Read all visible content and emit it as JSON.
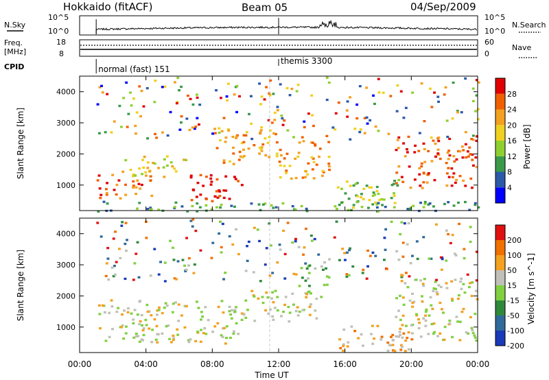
{
  "header": {
    "station": "Hokkaido (fitACF)",
    "beam": "Beam 05",
    "date": "04/Sep/2009"
  },
  "top_panel": {
    "left_label": "N.Sky",
    "right_label": "N.Search",
    "left_ticks": [
      "10^5",
      "10^0"
    ],
    "right_ticks": [
      "10^5",
      "10^0"
    ]
  },
  "freq_panel": {
    "left_label_1": "Freq.",
    "left_label_2": "[MHz]",
    "right_label": "Nave",
    "left_ticks": [
      "18",
      "8"
    ],
    "right_ticks": [
      "60",
      "0"
    ]
  },
  "cpid": {
    "label": "CPID",
    "modes": [
      {
        "name": "normal (fast) 151",
        "start_hour": 1.0
      },
      {
        "name": "themis 3300",
        "start_hour": 12.0
      }
    ]
  },
  "x_axis": {
    "title": "Time UT",
    "ticks": [
      "00:00",
      "04:00",
      "08:00",
      "12:00",
      "16:00",
      "20:00",
      "00:00"
    ],
    "range_hours": [
      0,
      24
    ]
  },
  "chart_data": [
    {
      "type": "heatmap",
      "title": "",
      "ylabel": "Slant Range [km]",
      "yticks": [
        "1000",
        "2000",
        "3000",
        "4000"
      ],
      "ylim": [
        180,
        4500
      ],
      "colorbar_label": "Power [dB]",
      "colorbar_ticks": [
        "4",
        "8",
        "12",
        "16",
        "20",
        "24",
        "28"
      ],
      "colors": [
        "#0000ff",
        "#2b5aa8",
        "#3a9a4a",
        "#8fd030",
        "#f0d020",
        "#f4a020",
        "#f06000",
        "#e00000"
      ],
      "regions": [
        {
          "t0": 1.0,
          "t1": 4.5,
          "r0": 600,
          "r1": 1400,
          "level": 6
        },
        {
          "t0": 2.5,
          "t1": 6.5,
          "r0": 1300,
          "r1": 2000,
          "level": 4
        },
        {
          "t0": 6.5,
          "t1": 10.0,
          "r0": 500,
          "r1": 1400,
          "level": 7
        },
        {
          "t0": 8.0,
          "t1": 12.0,
          "r0": 1700,
          "r1": 2900,
          "level": 5
        },
        {
          "t0": 12.0,
          "t1": 15.0,
          "r0": 1200,
          "r1": 2500,
          "level": 5
        },
        {
          "t0": 15.5,
          "t1": 20.0,
          "r0": 300,
          "r1": 1200,
          "level": 3
        },
        {
          "t0": 19.0,
          "t1": 24.0,
          "r0": 900,
          "r1": 2600,
          "level": 6
        },
        {
          "t0": 1.0,
          "t1": 24.0,
          "r0": 180,
          "r1": 500,
          "level": 2
        }
      ]
    },
    {
      "type": "heatmap",
      "title": "",
      "ylabel": "Slant Range [km]",
      "yticks": [
        "1000",
        "2000",
        "3000",
        "4000"
      ],
      "ylim": [
        180,
        4500
      ],
      "colorbar_label": "Velocity [m s^-1]",
      "colorbar_ticks": [
        "200",
        "100",
        "50",
        "15",
        "-15",
        "-50",
        "-100",
        "-200"
      ],
      "colors": [
        "#1a3ab8",
        "#2f6a9a",
        "#2e8a3a",
        "#80d040",
        "#c0c0b8",
        "#f4a020",
        "#f07000",
        "#e01010"
      ],
      "regions": [
        {
          "t0": 1.0,
          "t1": 10.0,
          "r0": 500,
          "r1": 1900,
          "level": 4
        },
        {
          "t0": 10.0,
          "t1": 14.5,
          "r0": 1200,
          "r1": 2200,
          "level": 4
        },
        {
          "t0": 15.5,
          "t1": 20.0,
          "r0": 250,
          "r1": 1100,
          "level": 5
        },
        {
          "t0": 19.0,
          "t1": 24.0,
          "r0": 600,
          "r1": 2600,
          "level": 4
        },
        {
          "t0": 13.0,
          "t1": 15.0,
          "r0": 2300,
          "r1": 3000,
          "level": 3
        }
      ]
    }
  ]
}
